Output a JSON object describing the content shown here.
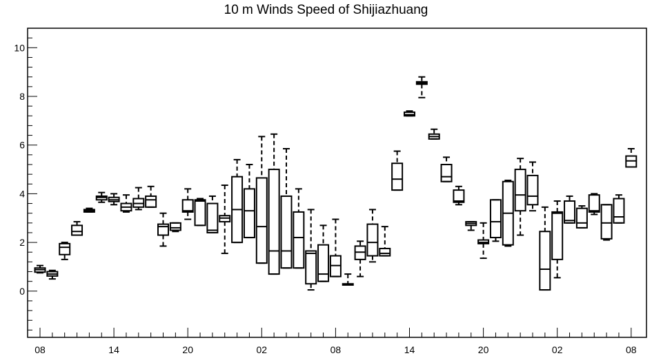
{
  "chart_data": {
    "type": "boxplot",
    "title": "10 m Winds Speed of Shijiazhuang",
    "xlabel": "",
    "ylabel": "",
    "ylim": [
      -1.9,
      10.8
    ],
    "yticks": [
      0,
      2,
      4,
      6,
      8,
      10
    ],
    "xtick_labels": [
      {
        "x": 0,
        "label": "08"
      },
      {
        "x": 6,
        "label": "14"
      },
      {
        "x": 12,
        "label": "20"
      },
      {
        "x": 18,
        "label": "02"
      },
      {
        "x": 24,
        "label": "08"
      },
      {
        "x": 30,
        "label": "14"
      },
      {
        "x": 36,
        "label": "20"
      },
      {
        "x": 42,
        "label": "02"
      },
      {
        "x": 48,
        "label": "08"
      }
    ],
    "boxes": [
      {
        "x": 0,
        "min": 0.75,
        "q1": 0.78,
        "median": 0.88,
        "q3": 0.95,
        "max": 1.05
      },
      {
        "x": 1,
        "min": 0.5,
        "q1": 0.62,
        "median": 0.7,
        "q3": 0.8,
        "max": 0.85
      },
      {
        "x": 2,
        "min": 1.3,
        "q1": 1.5,
        "median": 1.8,
        "q3": 1.95,
        "max": 2.0
      },
      {
        "x": 3,
        "min": 2.3,
        "q1": 2.3,
        "median": 2.45,
        "q3": 2.7,
        "max": 2.85
      },
      {
        "x": 4,
        "min": 3.25,
        "q1": 3.25,
        "median": 3.3,
        "q3": 3.35,
        "max": 3.4
      },
      {
        "x": 5,
        "min": 3.65,
        "q1": 3.75,
        "median": 3.85,
        "q3": 3.9,
        "max": 4.05
      },
      {
        "x": 6,
        "min": 3.55,
        "q1": 3.68,
        "median": 3.75,
        "q3": 3.85,
        "max": 4.0
      },
      {
        "x": 7,
        "min": 3.25,
        "q1": 3.3,
        "median": 3.45,
        "q3": 3.6,
        "max": 3.95
      },
      {
        "x": 8,
        "min": 3.35,
        "q1": 3.45,
        "median": 3.6,
        "q3": 3.8,
        "max": 4.25
      },
      {
        "x": 9,
        "min": 3.45,
        "q1": 3.45,
        "median": 3.75,
        "q3": 3.9,
        "max": 4.3
      },
      {
        "x": 10,
        "min": 1.85,
        "q1": 2.3,
        "median": 2.65,
        "q3": 2.75,
        "max": 3.2
      },
      {
        "x": 11,
        "min": 2.45,
        "q1": 2.5,
        "median": 2.6,
        "q3": 2.8,
        "max": 2.8
      },
      {
        "x": 12,
        "min": 2.95,
        "q1": 3.25,
        "median": 3.3,
        "q3": 3.75,
        "max": 4.2
      },
      {
        "x": 13,
        "min": 2.7,
        "q1": 2.7,
        "median": 3.7,
        "q3": 3.75,
        "max": 3.8
      },
      {
        "x": 14,
        "min": 2.4,
        "q1": 2.4,
        "median": 2.5,
        "q3": 3.6,
        "max": 3.9
      },
      {
        "x": 15,
        "min": 1.55,
        "q1": 2.85,
        "median": 3.0,
        "q3": 3.1,
        "max": 4.35
      },
      {
        "x": 16,
        "min": 2.0,
        "q1": 2.0,
        "median": 3.35,
        "q3": 4.7,
        "max": 5.4
      },
      {
        "x": 17,
        "min": 2.2,
        "q1": 2.2,
        "median": 3.3,
        "q3": 4.2,
        "max": 5.2
      },
      {
        "x": 18,
        "min": 1.15,
        "q1": 1.15,
        "median": 2.65,
        "q3": 4.65,
        "max": 6.35
      },
      {
        "x": 19,
        "min": 0.7,
        "q1": 0.7,
        "median": 1.65,
        "q3": 5.0,
        "max": 6.45
      },
      {
        "x": 20,
        "min": 0.95,
        "q1": 0.95,
        "median": 1.65,
        "q3": 3.9,
        "max": 5.85
      },
      {
        "x": 21,
        "min": 0.95,
        "q1": 0.95,
        "median": 2.2,
        "q3": 3.25,
        "max": 4.2
      },
      {
        "x": 22,
        "min": 0.05,
        "q1": 0.3,
        "median": 1.55,
        "q3": 1.65,
        "max": 3.35
      },
      {
        "x": 23,
        "min": 0.4,
        "q1": 0.4,
        "median": 0.7,
        "q3": 1.9,
        "max": 2.7
      },
      {
        "x": 24,
        "min": 0.6,
        "q1": 0.6,
        "median": 1.05,
        "q3": 1.45,
        "max": 2.95
      },
      {
        "x": 25,
        "min": 0.25,
        "q1": 0.25,
        "median": 0.25,
        "q3": 0.3,
        "max": 0.7
      },
      {
        "x": 26,
        "min": 0.6,
        "q1": 1.3,
        "median": 1.6,
        "q3": 1.85,
        "max": 2.05
      },
      {
        "x": 27,
        "min": 1.2,
        "q1": 1.45,
        "median": 2.0,
        "q3": 2.75,
        "max": 3.35
      },
      {
        "x": 28,
        "min": 1.45,
        "q1": 1.45,
        "median": 1.55,
        "q3": 1.75,
        "max": 2.65
      },
      {
        "x": 29,
        "min": 4.15,
        "q1": 4.15,
        "median": 4.6,
        "q3": 5.25,
        "max": 5.75
      },
      {
        "x": 30,
        "min": 7.2,
        "q1": 7.2,
        "median": 7.25,
        "q3": 7.35,
        "max": 7.4
      },
      {
        "x": 31,
        "min": 7.95,
        "q1": 8.5,
        "median": 8.55,
        "q3": 8.6,
        "max": 8.8
      },
      {
        "x": 32,
        "min": 6.25,
        "q1": 6.25,
        "median": 6.35,
        "q3": 6.45,
        "max": 6.65
      },
      {
        "x": 33,
        "min": 4.5,
        "q1": 4.5,
        "median": 4.7,
        "q3": 5.2,
        "max": 5.5
      },
      {
        "x": 34,
        "min": 3.55,
        "q1": 3.65,
        "median": 3.7,
        "q3": 4.15,
        "max": 4.3
      },
      {
        "x": 35,
        "min": 2.5,
        "q1": 2.7,
        "median": 2.78,
        "q3": 2.85,
        "max": 2.85
      },
      {
        "x": 36,
        "min": 1.35,
        "q1": 1.95,
        "median": 2.0,
        "q3": 2.1,
        "max": 2.8
      },
      {
        "x": 37,
        "min": 2.05,
        "q1": 2.2,
        "median": 2.85,
        "q3": 3.75,
        "max": 3.75
      },
      {
        "x": 38,
        "min": 1.85,
        "q1": 1.9,
        "median": 3.2,
        "q3": 4.5,
        "max": 4.55
      },
      {
        "x": 39,
        "min": 2.3,
        "q1": 3.3,
        "median": 3.95,
        "q3": 5.0,
        "max": 5.45
      },
      {
        "x": 40,
        "min": 3.3,
        "q1": 3.55,
        "median": 3.9,
        "q3": 4.75,
        "max": 5.3
      },
      {
        "x": 41,
        "min": 0.05,
        "q1": 0.05,
        "median": 0.9,
        "q3": 2.45,
        "max": 3.45
      },
      {
        "x": 42,
        "min": 0.55,
        "q1": 1.3,
        "median": 3.2,
        "q3": 3.25,
        "max": 3.7
      },
      {
        "x": 43,
        "min": 2.8,
        "q1": 2.8,
        "median": 2.9,
        "q3": 3.7,
        "max": 3.9
      },
      {
        "x": 44,
        "min": 2.6,
        "q1": 2.6,
        "median": 2.8,
        "q3": 3.4,
        "max": 3.5
      },
      {
        "x": 45,
        "min": 3.15,
        "q1": 3.25,
        "median": 3.3,
        "q3": 3.95,
        "max": 4.0
      },
      {
        "x": 46,
        "min": 2.1,
        "q1": 2.15,
        "median": 2.8,
        "q3": 3.55,
        "max": 3.55
      },
      {
        "x": 47,
        "min": 2.8,
        "q1": 2.8,
        "median": 3.05,
        "q3": 3.8,
        "max": 3.95
      },
      {
        "x": 48,
        "min": 5.1,
        "q1": 5.1,
        "median": 5.35,
        "q3": 5.55,
        "max": 5.85
      }
    ]
  }
}
